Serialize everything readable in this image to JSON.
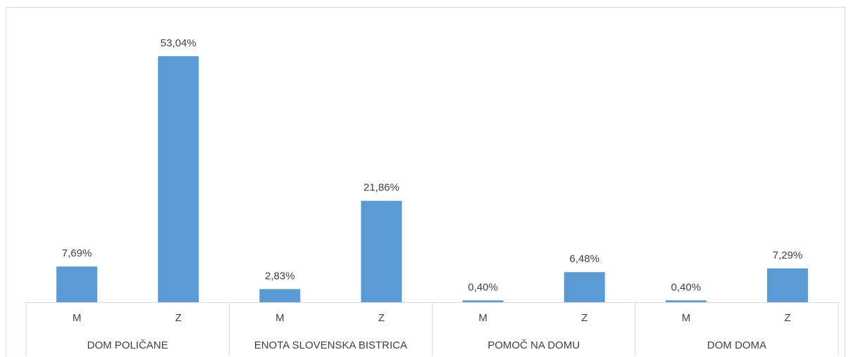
{
  "chart_data": {
    "type": "bar",
    "categories": [
      "M",
      "Z",
      "M",
      "Z",
      "M",
      "Z",
      "M",
      "Z"
    ],
    "groups": [
      "DOM POLIČANE",
      "ENOTA SLOVENSKA BISTRICA",
      "POMOČ NA DOMU",
      "DOM DOMA"
    ],
    "values": [
      7.69,
      53.04,
      2.83,
      21.86,
      0.4,
      6.48,
      0.4,
      7.29
    ],
    "value_labels": [
      "7,69%",
      "53,04%",
      "2,83%",
      "21,86%",
      "0,40%",
      "6,48%",
      "0,40%",
      "7,29%"
    ],
    "color": "#5b9bd5",
    "ylim": [
      0,
      60
    ]
  }
}
